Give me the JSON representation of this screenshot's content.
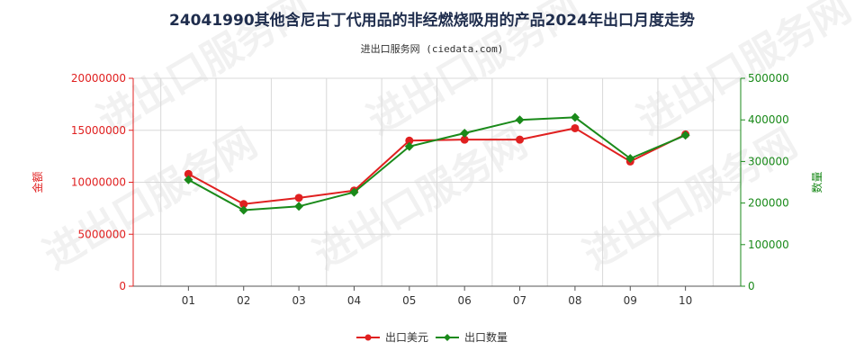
{
  "chart_data": {
    "type": "line",
    "title": "24041990其他含尼古丁代用品的非经燃烧吸用的产品2024年出口月度走势",
    "subtitle": "进出口服务网 (ciedata.com)",
    "categories": [
      "01",
      "02",
      "03",
      "04",
      "05",
      "06",
      "07",
      "08",
      "09",
      "10"
    ],
    "y_left": {
      "label": "金额",
      "ylim": [
        0,
        20000000
      ],
      "ticks": [
        "0",
        "5000000",
        "10000000",
        "15000000",
        "20000000"
      ],
      "color": "#e02020"
    },
    "y_right": {
      "label": "数量",
      "ylim": [
        0,
        500000
      ],
      "ticks": [
        "0",
        "100000",
        "200000",
        "300000",
        "400000",
        "500000"
      ],
      "color": "#1a8a1a"
    },
    "series": [
      {
        "name": "出口美元",
        "axis": "left",
        "color": "#e02020",
        "values": [
          10800000,
          7900000,
          8500000,
          9200000,
          14000000,
          14100000,
          14100000,
          15200000,
          12000000,
          14600000
        ]
      },
      {
        "name": "出口数量",
        "axis": "right",
        "color": "#1a8a1a",
        "values": [
          256000,
          183000,
          192000,
          226000,
          336000,
          368000,
          400000,
          406000,
          307000,
          363000
        ]
      }
    ],
    "grid": true,
    "legend_position": "bottom-center",
    "watermark": "进出口服务网"
  }
}
